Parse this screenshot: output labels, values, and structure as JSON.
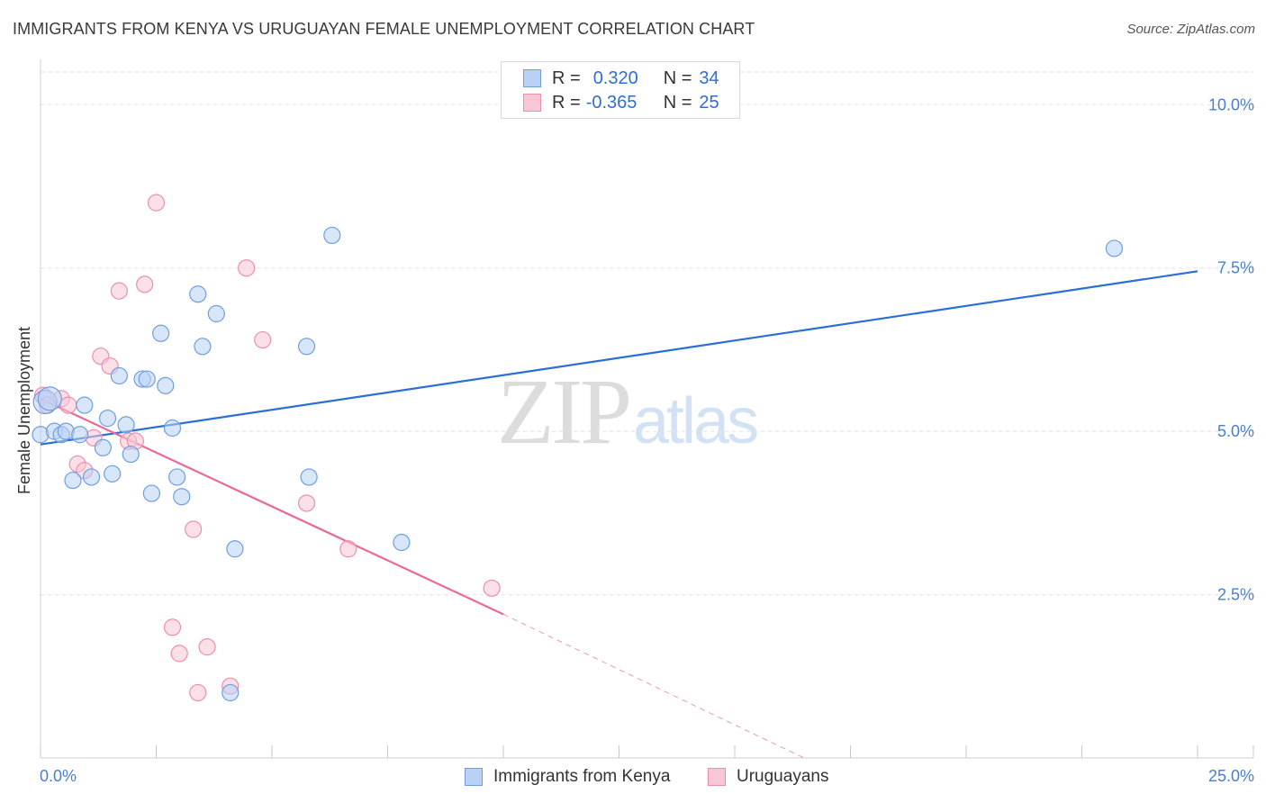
{
  "title": "IMMIGRANTS FROM KENYA VS URUGUAYAN FEMALE UNEMPLOYMENT CORRELATION CHART",
  "source": "Source: ZipAtlas.com",
  "watermark": {
    "zip": "ZIP",
    "atlas": "atlas"
  },
  "legend_top": {
    "rows": [
      {
        "r_label": "R =",
        "r_value": "0.320",
        "n_label": "N =",
        "n_value": "34"
      },
      {
        "r_label": "R =",
        "r_value": "-0.365",
        "n_label": "N =",
        "n_value": "25"
      }
    ]
  },
  "colors": {
    "kenya_fill": "#b8d1f5",
    "kenya_stroke": "#6f9ee0",
    "kenya_line": "#2a6fd6",
    "uru_fill": "#f9c6d6",
    "uru_stroke": "#eb8fab",
    "uru_line": "#e8699a",
    "grid": "#e2e2e2",
    "tick_text": "#4a7fd0"
  },
  "chart_data": {
    "type": "scatter",
    "title": "IMMIGRANTS FROM KENYA VS URUGUAYAN FEMALE UNEMPLOYMENT CORRELATION CHART",
    "xlabel": "",
    "ylabel": "Female Unemployment",
    "xlim": [
      0,
      25
    ],
    "ylim": [
      0,
      10.5
    ],
    "x_tick_labels": [
      "0.0%",
      "25.0%"
    ],
    "y_ticks": [
      2.5,
      5.0,
      7.5,
      10.0
    ],
    "y_tick_labels": [
      "2.5%",
      "5.0%",
      "7.5%",
      "10.0%"
    ],
    "legend_placement": "bottom",
    "series": [
      {
        "name": "Immigrants from Kenya",
        "r": 0.32,
        "n": 34,
        "points": [
          {
            "x": 0.0,
            "y": 4.95
          },
          {
            "x": 0.3,
            "y": 5.0
          },
          {
            "x": 0.45,
            "y": 4.95
          },
          {
            "x": 0.55,
            "y": 5.0
          },
          {
            "x": 0.7,
            "y": 4.25
          },
          {
            "x": 0.85,
            "y": 4.95
          },
          {
            "x": 0.95,
            "y": 5.4
          },
          {
            "x": 1.1,
            "y": 4.3
          },
          {
            "x": 1.35,
            "y": 4.75
          },
          {
            "x": 1.45,
            "y": 5.2
          },
          {
            "x": 1.55,
            "y": 4.35
          },
          {
            "x": 1.7,
            "y": 5.85
          },
          {
            "x": 1.85,
            "y": 5.1
          },
          {
            "x": 1.95,
            "y": 4.65
          },
          {
            "x": 2.2,
            "y": 5.8
          },
          {
            "x": 2.3,
            "y": 5.8
          },
          {
            "x": 2.4,
            "y": 4.05
          },
          {
            "x": 2.6,
            "y": 6.5
          },
          {
            "x": 2.7,
            "y": 5.7
          },
          {
            "x": 2.85,
            "y": 5.05
          },
          {
            "x": 2.95,
            "y": 4.3
          },
          {
            "x": 3.05,
            "y": 4.0
          },
          {
            "x": 3.4,
            "y": 7.1
          },
          {
            "x": 3.5,
            "y": 6.3
          },
          {
            "x": 3.8,
            "y": 6.8
          },
          {
            "x": 4.1,
            "y": 1.0
          },
          {
            "x": 4.2,
            "y": 3.2
          },
          {
            "x": 5.75,
            "y": 6.3
          },
          {
            "x": 5.8,
            "y": 4.3
          },
          {
            "x": 6.3,
            "y": 8.0
          },
          {
            "x": 7.8,
            "y": 3.3
          },
          {
            "x": 23.2,
            "y": 7.8
          },
          {
            "x": 0.1,
            "y": 5.45
          },
          {
            "x": 0.2,
            "y": 5.5
          }
        ],
        "trend": {
          "x0": 0,
          "y0": 4.8,
          "x1": 25,
          "y1": 7.45
        }
      },
      {
        "name": "Uruguayans",
        "r": -0.365,
        "n": 25,
        "points": [
          {
            "x": 0.05,
            "y": 5.55
          },
          {
            "x": 0.15,
            "y": 5.4
          },
          {
            "x": 0.45,
            "y": 5.5
          },
          {
            "x": 0.6,
            "y": 5.4
          },
          {
            "x": 0.8,
            "y": 4.5
          },
          {
            "x": 0.95,
            "y": 4.4
          },
          {
            "x": 1.15,
            "y": 4.9
          },
          {
            "x": 1.3,
            "y": 6.15
          },
          {
            "x": 1.5,
            "y": 6.0
          },
          {
            "x": 1.7,
            "y": 7.15
          },
          {
            "x": 1.9,
            "y": 4.85
          },
          {
            "x": 2.05,
            "y": 4.85
          },
          {
            "x": 2.25,
            "y": 7.25
          },
          {
            "x": 2.5,
            "y": 8.5
          },
          {
            "x": 2.85,
            "y": 2.0
          },
          {
            "x": 3.0,
            "y": 1.6
          },
          {
            "x": 3.3,
            "y": 3.5
          },
          {
            "x": 3.4,
            "y": 1.0
          },
          {
            "x": 3.6,
            "y": 1.7
          },
          {
            "x": 4.1,
            "y": 1.1
          },
          {
            "x": 4.45,
            "y": 7.5
          },
          {
            "x": 4.8,
            "y": 6.4
          },
          {
            "x": 5.75,
            "y": 3.9
          },
          {
            "x": 6.65,
            "y": 3.2
          },
          {
            "x": 9.75,
            "y": 2.6
          }
        ],
        "trend_solid": {
          "x0": 0,
          "y0": 5.5,
          "x1": 10,
          "y1": 2.2
        },
        "trend_dashed": {
          "x0": 10,
          "y0": 2.2,
          "x1": 16.5,
          "y1": 0.0
        }
      }
    ]
  },
  "legend_bottom": {
    "items": [
      {
        "label": "Immigrants from Kenya"
      },
      {
        "label": "Uruguayans"
      }
    ]
  }
}
